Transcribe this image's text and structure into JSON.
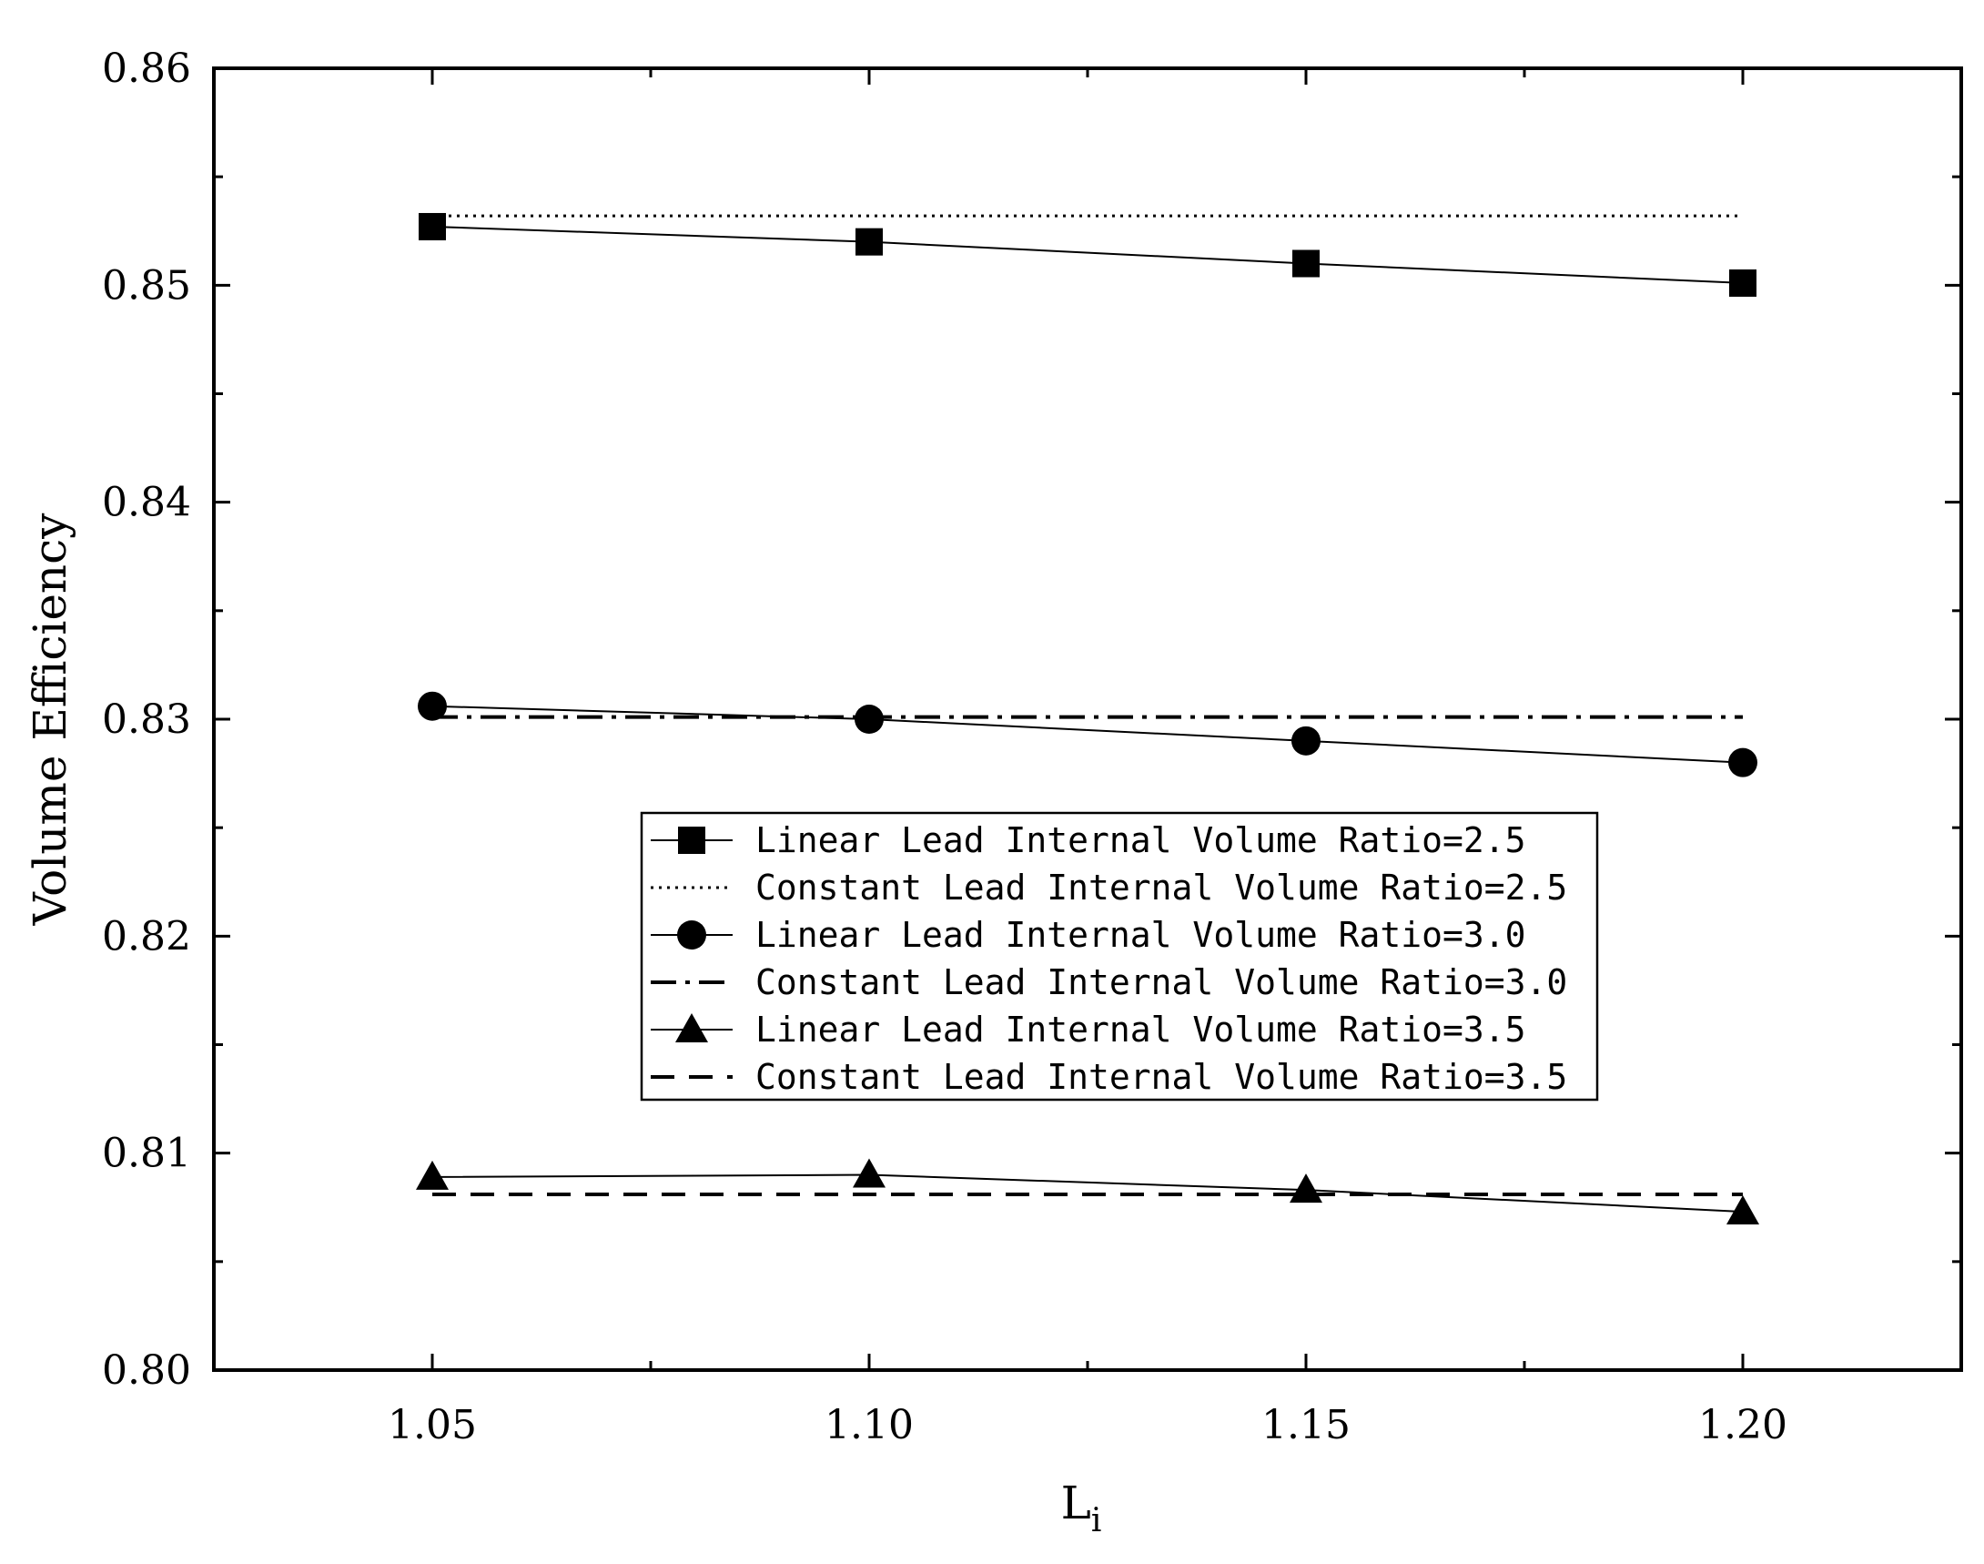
{
  "chart_data": {
    "type": "line",
    "xlabel": "L",
    "xlabel_subscript": "i",
    "ylabel": "Volume Efficiency",
    "xlim": [
      1.025,
      1.225
    ],
    "ylim": [
      0.8,
      0.86
    ],
    "x_ticks": [
      1.05,
      1.1,
      1.15,
      1.2
    ],
    "x_tick_labels": [
      "1.05",
      "1.10",
      "1.15",
      "1.20"
    ],
    "y_ticks": [
      0.8,
      0.81,
      0.82,
      0.83,
      0.84,
      0.85,
      0.86
    ],
    "y_tick_labels": [
      "0.80",
      "0.81",
      "0.82",
      "0.83",
      "0.84",
      "0.85",
      "0.86"
    ],
    "grid": false,
    "legend_position": "center",
    "x": [
      1.05,
      1.1,
      1.15,
      1.2
    ],
    "series": [
      {
        "name": "Linear Lead Internal Volume Ratio=2.5",
        "values": [
          0.8527,
          0.852,
          0.851,
          0.8501
        ],
        "style": "solid",
        "marker": "square"
      },
      {
        "name": "Constant Lead Internal Volume Ratio=2.5",
        "values": [
          0.8532,
          0.8532,
          0.8532,
          0.8532
        ],
        "style": "dotted",
        "marker": "none"
      },
      {
        "name": "Linear Lead Internal Volume Ratio=3.0",
        "values": [
          0.8306,
          0.83,
          0.829,
          0.828
        ],
        "style": "solid",
        "marker": "circle"
      },
      {
        "name": "Constant Lead Internal Volume Ratio=3.0",
        "values": [
          0.8301,
          0.8301,
          0.8301,
          0.8301
        ],
        "style": "dashdot",
        "marker": "none"
      },
      {
        "name": "Linear Lead Internal Volume Ratio=3.5",
        "values": [
          0.8089,
          0.809,
          0.8083,
          0.8073
        ],
        "style": "solid",
        "marker": "triangle"
      },
      {
        "name": "Constant Lead Internal Volume Ratio=3.5",
        "values": [
          0.8081,
          0.8081,
          0.8081,
          0.8081
        ],
        "style": "dashed",
        "marker": "none"
      }
    ]
  },
  "colors": {
    "line": "#000000",
    "marker": "#000000",
    "background": "#ffffff"
  }
}
